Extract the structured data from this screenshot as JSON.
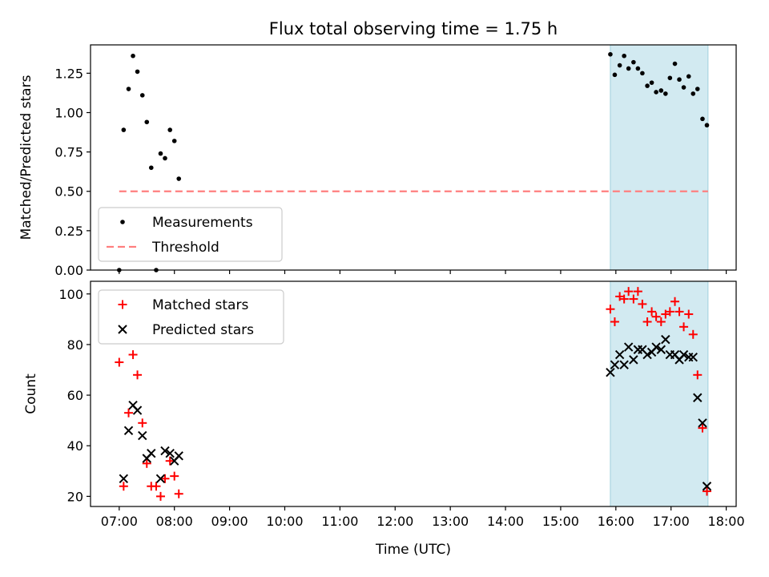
{
  "figure": {
    "title": "Flux total observing time = 1.75 h",
    "xlabel": "Time (UTC)",
    "x_ticks": [
      "07:00",
      "08:00",
      "09:00",
      "10:00",
      "11:00",
      "12:00",
      "13:00",
      "14:00",
      "15:00",
      "16:00",
      "17:00",
      "18:00"
    ]
  },
  "colors": {
    "measurements": "#000000",
    "threshold": "#ff7f7f",
    "matched": "#ff0000",
    "predicted": "#000000",
    "span": "#add8e6"
  },
  "chart_data": [
    {
      "type": "scatter",
      "panel": "top",
      "ylabel": "Matched/Predicted stars",
      "xlim": [
        6.48,
        18.18
      ],
      "ylim": [
        0,
        1.43
      ],
      "y_ticks": [
        "0.00",
        "0.25",
        "0.50",
        "0.75",
        "1.00",
        "1.25"
      ],
      "x_tick_labels_shown": false,
      "shaded_span": {
        "x_start": 15.9,
        "x_end": 17.67,
        "color": "light blue"
      },
      "legend": {
        "position": "lower-left",
        "entries": [
          "Measurements",
          "Threshold"
        ]
      },
      "series": [
        {
          "name": "Measurements",
          "marker": "dot",
          "x": [
            7.0,
            7.08,
            7.17,
            7.25,
            7.33,
            7.42,
            7.5,
            7.58,
            7.67,
            7.75,
            7.83,
            7.92,
            8.0,
            8.08,
            15.9,
            15.98,
            16.07,
            16.15,
            16.23,
            16.32,
            16.4,
            16.48,
            16.57,
            16.65,
            16.73,
            16.82,
            16.9,
            16.98,
            17.07,
            17.15,
            17.23,
            17.32,
            17.4,
            17.48,
            17.57,
            17.65
          ],
          "y": [
            0.0,
            0.89,
            1.15,
            1.36,
            1.26,
            1.11,
            0.94,
            0.65,
            0.0,
            0.74,
            0.71,
            0.89,
            0.82,
            0.58,
            1.37,
            1.24,
            1.3,
            1.36,
            1.28,
            1.32,
            1.28,
            1.25,
            1.17,
            1.19,
            1.13,
            1.14,
            1.12,
            1.22,
            1.31,
            1.21,
            1.16,
            1.23,
            1.12,
            1.15,
            0.96,
            0.92
          ]
        },
        {
          "name": "Threshold",
          "style": "dashed",
          "x": [
            7.0,
            17.67
          ],
          "y": [
            0.5,
            0.5
          ]
        }
      ]
    },
    {
      "type": "scatter",
      "panel": "bottom",
      "ylabel": "Count",
      "xlim": [
        6.48,
        18.18
      ],
      "ylim": [
        16,
        105
      ],
      "y_ticks": [
        "20",
        "40",
        "60",
        "80",
        "100"
      ],
      "shaded_span": {
        "x_start": 15.9,
        "x_end": 17.67,
        "color": "light blue"
      },
      "legend": {
        "position": "upper-left",
        "entries": [
          "Matched stars",
          "Predicted stars"
        ]
      },
      "series": [
        {
          "name": "Matched stars",
          "marker": "+",
          "x": [
            7.0,
            7.08,
            7.17,
            7.25,
            7.33,
            7.42,
            7.5,
            7.58,
            7.67,
            7.75,
            7.83,
            7.92,
            8.0,
            8.08,
            15.9,
            15.98,
            16.07,
            16.15,
            16.23,
            16.32,
            16.4,
            16.48,
            16.57,
            16.65,
            16.73,
            16.82,
            16.9,
            16.98,
            17.07,
            17.15,
            17.23,
            17.32,
            17.4,
            17.48,
            17.57,
            17.65
          ],
          "y": [
            73,
            24,
            53,
            76,
            68,
            49,
            33,
            24,
            24,
            20,
            27,
            34,
            28,
            21,
            94,
            89,
            99,
            98,
            101,
            98,
            101,
            96,
            89,
            93,
            91,
            89,
            92,
            93,
            97,
            93,
            87,
            92,
            84,
            68,
            47,
            22
          ]
        },
        {
          "name": "Predicted stars",
          "marker": "x",
          "x": [
            7.08,
            7.17,
            7.25,
            7.33,
            7.42,
            7.5,
            7.58,
            7.75,
            7.83,
            7.92,
            8.0,
            8.08,
            15.9,
            15.98,
            16.07,
            16.15,
            16.23,
            16.32,
            16.4,
            16.48,
            16.57,
            16.65,
            16.73,
            16.82,
            16.9,
            16.98,
            17.07,
            17.15,
            17.23,
            17.32,
            17.4,
            17.48,
            17.57,
            17.65
          ],
          "y": [
            27,
            46,
            56,
            54,
            44,
            35,
            37,
            27,
            38,
            37,
            34,
            36,
            69,
            72,
            76,
            72,
            79,
            74,
            78,
            78,
            76,
            77,
            79,
            78,
            82,
            76,
            76,
            74,
            76,
            75,
            75,
            59,
            49,
            24
          ]
        }
      ]
    }
  ]
}
